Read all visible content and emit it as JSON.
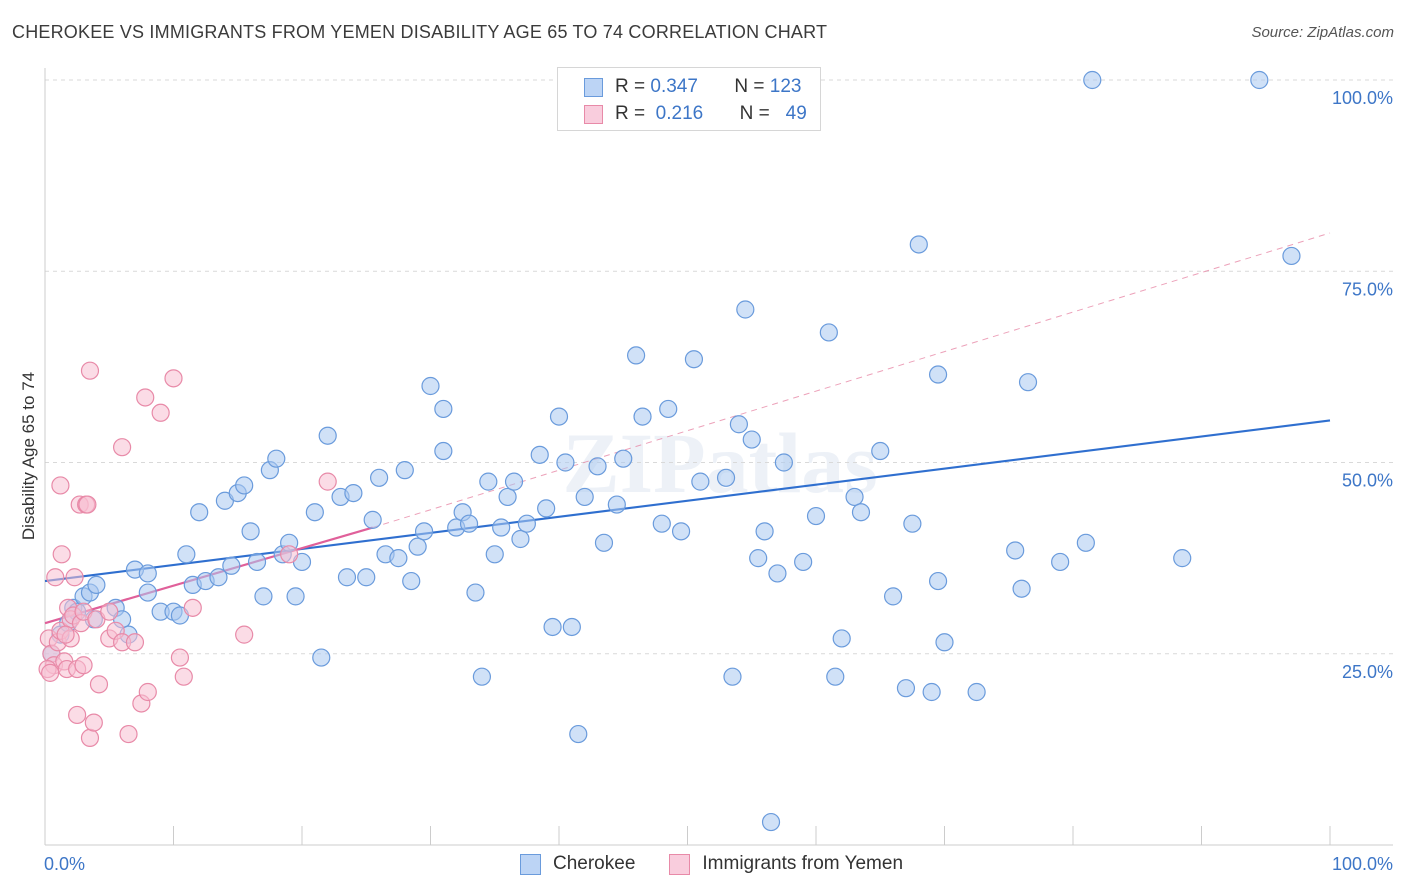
{
  "title": "CHEROKEE VS IMMIGRANTS FROM YEMEN DISABILITY AGE 65 TO 74 CORRELATION CHART",
  "source": "Source: ZipAtlas.com",
  "watermark": "ZIPatlas",
  "legend": {
    "rows": [
      {
        "r_label": "R =",
        "r_value": "0.347",
        "n_label": "N =",
        "n_value": "123"
      },
      {
        "r_label": "R =",
        "r_value": "0.216",
        "n_label": "N =",
        "n_value": "49"
      }
    ]
  },
  "colors": {
    "blue_fill": "#a9c8f0",
    "blue_stroke": "#6a9bdc",
    "blue_line": "#2f6fcf",
    "pink_fill": "#f7bfd2",
    "pink_stroke": "#e88aa8",
    "pink_line": "#e0609a",
    "tick_text": "#3d76c7",
    "grid": "#d9d9d9"
  },
  "chart_data": {
    "type": "scatter",
    "xlabel": "",
    "ylabel": "Disability Age 65 to 74",
    "xlim": [
      0,
      100
    ],
    "ylim": [
      0,
      100
    ],
    "x_tick_labels": [
      "0.0%",
      "100.0%"
    ],
    "y_ticks": [
      25,
      50,
      75,
      100
    ],
    "y_tick_labels": [
      "25.0%",
      "50.0%",
      "75.0%",
      "100.0%"
    ],
    "grid": "horizontal dashed",
    "legend_position": "top-center and bottom",
    "series": [
      {
        "name": "Cherokee",
        "color": "#a9c8f0",
        "trend": {
          "x": [
            0,
            100
          ],
          "y": [
            34.5,
            55.5
          ],
          "style": "solid"
        },
        "points": [
          [
            0.5,
            25
          ],
          [
            1.2,
            27.5
          ],
          [
            1.8,
            29
          ],
          [
            2.2,
            31
          ],
          [
            2.5,
            30.5
          ],
          [
            3,
            32.5
          ],
          [
            3.5,
            33
          ],
          [
            3.8,
            29.5
          ],
          [
            4,
            34
          ],
          [
            5.5,
            31
          ],
          [
            6,
            29.5
          ],
          [
            6.5,
            27.5
          ],
          [
            7,
            36
          ],
          [
            8,
            33
          ],
          [
            8,
            35.5
          ],
          [
            9,
            30.5
          ],
          [
            10,
            30.5
          ],
          [
            10.5,
            30
          ],
          [
            11,
            38
          ],
          [
            11.5,
            34
          ],
          [
            12,
            43.5
          ],
          [
            12.5,
            34.5
          ],
          [
            13.5,
            35
          ],
          [
            14,
            45
          ],
          [
            14.5,
            36.5
          ],
          [
            15,
            46
          ],
          [
            15.5,
            47
          ],
          [
            16,
            41
          ],
          [
            16.5,
            37
          ],
          [
            17,
            32.5
          ],
          [
            17.5,
            49
          ],
          [
            18,
            50.5
          ],
          [
            18.5,
            38
          ],
          [
            19,
            39.5
          ],
          [
            19.5,
            32.5
          ],
          [
            20,
            37
          ],
          [
            21,
            43.5
          ],
          [
            21.5,
            24.5
          ],
          [
            22,
            53.5
          ],
          [
            23,
            45.5
          ],
          [
            23.5,
            35
          ],
          [
            24,
            46
          ],
          [
            25,
            35
          ],
          [
            25.5,
            42.5
          ],
          [
            26,
            48
          ],
          [
            26.5,
            38
          ],
          [
            27.5,
            37.5
          ],
          [
            28,
            49
          ],
          [
            28.5,
            34.5
          ],
          [
            29,
            39
          ],
          [
            29.5,
            41
          ],
          [
            30,
            60
          ],
          [
            31,
            51.5
          ],
          [
            31,
            57
          ],
          [
            32,
            41.5
          ],
          [
            32.5,
            43.5
          ],
          [
            33,
            42
          ],
          [
            33.5,
            33
          ],
          [
            34,
            22
          ],
          [
            34.5,
            47.5
          ],
          [
            35,
            38
          ],
          [
            35.5,
            41.5
          ],
          [
            36,
            45.5
          ],
          [
            36.5,
            47.5
          ],
          [
            37,
            40
          ],
          [
            37.5,
            42
          ],
          [
            38.5,
            51
          ],
          [
            39,
            44
          ],
          [
            39.5,
            28.5
          ],
          [
            40,
            56
          ],
          [
            40.5,
            50
          ],
          [
            41,
            28.5
          ],
          [
            41.5,
            14.5
          ],
          [
            42,
            45.5
          ],
          [
            43,
            49.5
          ],
          [
            43.5,
            39.5
          ],
          [
            44.5,
            44.5
          ],
          [
            45,
            50.5
          ],
          [
            46,
            64
          ],
          [
            46.5,
            56
          ],
          [
            48,
            42
          ],
          [
            48.5,
            57
          ],
          [
            49.5,
            41
          ],
          [
            50.5,
            63.5
          ],
          [
            51,
            47.5
          ],
          [
            53,
            48
          ],
          [
            53.5,
            22
          ],
          [
            54,
            55
          ],
          [
            54.5,
            70
          ],
          [
            55,
            53
          ],
          [
            55.5,
            37.5
          ],
          [
            56,
            41
          ],
          [
            56.5,
            3
          ],
          [
            57,
            35.5
          ],
          [
            57.5,
            50
          ],
          [
            59,
            37
          ],
          [
            60,
            43
          ],
          [
            61,
            67
          ],
          [
            61.5,
            22
          ],
          [
            62,
            27
          ],
          [
            63,
            45.5
          ],
          [
            63.5,
            43.5
          ],
          [
            65,
            51.5
          ],
          [
            66,
            32.5
          ],
          [
            67,
            20.5
          ],
          [
            67.5,
            42
          ],
          [
            68,
            78.5
          ],
          [
            69,
            20
          ],
          [
            69.5,
            34.5
          ],
          [
            69.5,
            61.5
          ],
          [
            70,
            26.5
          ],
          [
            72.5,
            20
          ],
          [
            75.5,
            38.5
          ],
          [
            76,
            33.5
          ],
          [
            76.5,
            60.5
          ],
          [
            79,
            37
          ],
          [
            81,
            39.5
          ],
          [
            81.5,
            100
          ],
          [
            88.5,
            37.5
          ],
          [
            94.5,
            100
          ],
          [
            97,
            77
          ]
        ]
      },
      {
        "name": "Immigrants from Yemen",
        "color": "#f7bfd2",
        "trend": {
          "x": [
            0,
            25.5
          ],
          "y": [
            29,
            41.5
          ],
          "style": "solid",
          "extended": {
            "x": [
              25.5,
              100
            ],
            "y": [
              41.5,
              80
            ]
          }
        },
        "points": [
          [
            0.3,
            27
          ],
          [
            0.5,
            25
          ],
          [
            0.7,
            23.5
          ],
          [
            0.8,
            35
          ],
          [
            1,
            26.5
          ],
          [
            1.2,
            28
          ],
          [
            1.2,
            47
          ],
          [
            1.3,
            38
          ],
          [
            1.5,
            24
          ],
          [
            1.7,
            23
          ],
          [
            1.8,
            31
          ],
          [
            2,
            29.5
          ],
          [
            2,
            27
          ],
          [
            2.2,
            30
          ],
          [
            2.3,
            35
          ],
          [
            2.5,
            23
          ],
          [
            2.5,
            17
          ],
          [
            2.7,
            44.5
          ],
          [
            2.8,
            29
          ],
          [
            3,
            30.5
          ],
          [
            3,
            23.5
          ],
          [
            3.2,
            44.5
          ],
          [
            3.3,
            44.5
          ],
          [
            3.5,
            14
          ],
          [
            3.5,
            62
          ],
          [
            3.8,
            16
          ],
          [
            4,
            29.5
          ],
          [
            4.2,
            21
          ],
          [
            5,
            27
          ],
          [
            5,
            30.5
          ],
          [
            5.5,
            28
          ],
          [
            6,
            52
          ],
          [
            6,
            26.5
          ],
          [
            6.5,
            14.5
          ],
          [
            7,
            26.5
          ],
          [
            7.5,
            18.5
          ],
          [
            7.8,
            58.5
          ],
          [
            8,
            20
          ],
          [
            9,
            56.5
          ],
          [
            10,
            61
          ],
          [
            10.5,
            24.5
          ],
          [
            10.8,
            22
          ],
          [
            11.5,
            31
          ],
          [
            15.5,
            27.5
          ],
          [
            19,
            38
          ],
          [
            22,
            47.5
          ],
          [
            0.2,
            23
          ],
          [
            0.4,
            22.5
          ],
          [
            1.6,
            27.5
          ]
        ]
      }
    ]
  }
}
